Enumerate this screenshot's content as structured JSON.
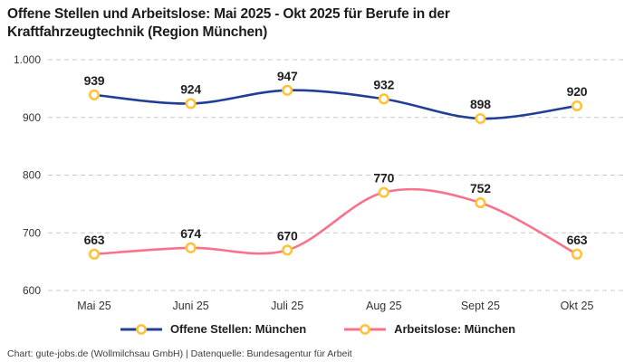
{
  "title": "Offene Stellen und Arbeitslose: Mai 2025 - Okt 2025 für Berufe in der Kraftfahrzeugtechnik (Region München)",
  "footer": "Chart: gute-jobs.de (Wollmilchsau GmbH) | Datenquelle: Bundesagentur für Arbeit",
  "colors": {
    "blue_series": "#223f97",
    "pink_series": "#f9718a",
    "marker_ring": "#ffc233",
    "marker_fill": "#ffffff",
    "gridline": "#c9c9c9",
    "axis_text": "#333333",
    "label_text": "#1f1f1f",
    "title_text": "#1c1c1c"
  },
  "chart_data": {
    "type": "line",
    "categories": [
      "Mai 25",
      "Juni 25",
      "Juli 25",
      "Aug 25",
      "Sept 25",
      "Okt 25"
    ],
    "series": [
      {
        "name": "Offene Stellen: München",
        "color_key": "blue_series",
        "values": [
          939,
          924,
          947,
          932,
          898,
          920
        ]
      },
      {
        "name": "Arbeitslose: München",
        "color_key": "pink_series",
        "values": [
          663,
          674,
          670,
          770,
          752,
          663
        ]
      }
    ],
    "ylim": [
      600,
      1000
    ],
    "y_ticks": [
      {
        "value": 600,
        "label": "600"
      },
      {
        "value": 700,
        "label": "700"
      },
      {
        "value": 800,
        "label": "800"
      },
      {
        "value": 900,
        "label": "900"
      },
      {
        "value": 1000,
        "label": "1.000"
      }
    ],
    "grid": "dashed-horizontal",
    "legend_position": "bottom",
    "marker": "open-circle-gold",
    "data_labels": "above-points"
  }
}
